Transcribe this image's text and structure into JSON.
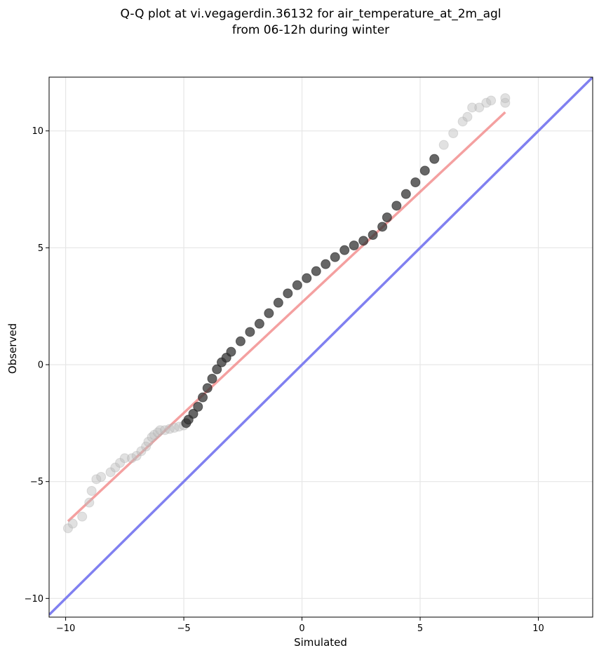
{
  "chart_data": {
    "type": "scatter",
    "title": [
      "Q-Q plot at vi.vegagerdin.36132 for air_temperature_at_2m_agl",
      "from 06-12h during winter"
    ],
    "xlabel": "Simulated",
    "ylabel": "Observed",
    "xlim": [
      -10.7,
      12.3
    ],
    "ylim": [
      -10.8,
      12.3
    ],
    "x_ticks": [
      -10,
      -5,
      0,
      5,
      10
    ],
    "y_ticks": [
      -10,
      -5,
      0,
      5,
      10
    ],
    "x_tick_labels": [
      "−10",
      "−5",
      "0",
      "5",
      "10"
    ],
    "y_tick_labels": [
      "−10",
      "−5",
      "0",
      "5",
      "10"
    ],
    "grid": true,
    "series": [
      {
        "kind": "quantile_points",
        "color": "#333333",
        "x": [
          -9.9,
          -9.7,
          -9.3,
          -9.0,
          -8.9,
          -8.7,
          -8.5,
          -8.1,
          -7.9,
          -7.7,
          -7.5,
          -7.2,
          -7.0,
          -6.8,
          -6.6,
          -6.5,
          -6.35,
          -6.25,
          -6.1,
          -6.0,
          -5.8,
          -5.6,
          -5.4,
          -5.2,
          -5.0,
          -4.9,
          -4.8,
          -4.6,
          -4.4,
          -4.2,
          -4.0,
          -3.8,
          -3.6,
          -3.4,
          -3.2,
          -3.0,
          -2.6,
          -2.2,
          -1.8,
          -1.4,
          -1.0,
          -0.6,
          -0.2,
          0.2,
          0.6,
          1.0,
          1.4,
          1.8,
          2.2,
          2.6,
          3.0,
          3.4,
          3.6,
          4.0,
          4.4,
          4.8,
          5.2,
          5.6,
          6.0,
          6.4,
          6.8,
          7.0,
          7.2,
          7.5,
          7.8,
          8.0,
          8.6,
          8.6
        ],
        "y": [
          -7.0,
          -6.8,
          -6.5,
          -5.9,
          -5.4,
          -4.9,
          -4.8,
          -4.6,
          -4.4,
          -4.2,
          -4.0,
          -4.0,
          -3.9,
          -3.7,
          -3.5,
          -3.3,
          -3.1,
          -3.0,
          -2.9,
          -2.8,
          -2.8,
          -2.75,
          -2.7,
          -2.65,
          -2.6,
          -2.5,
          -2.35,
          -2.1,
          -1.8,
          -1.4,
          -1.0,
          -0.6,
          -0.2,
          0.1,
          0.3,
          0.55,
          1.0,
          1.4,
          1.75,
          2.2,
          2.65,
          3.05,
          3.4,
          3.7,
          4.0,
          4.3,
          4.6,
          4.9,
          5.1,
          5.3,
          5.55,
          5.9,
          6.3,
          6.8,
          7.3,
          7.8,
          8.3,
          8.8,
          9.4,
          9.9,
          10.4,
          10.6,
          11.0,
          11.0,
          11.2,
          11.3,
          11.2,
          11.4
        ]
      },
      {
        "kind": "fit_line",
        "color": "#f08080",
        "x": [
          -9.9,
          8.6
        ],
        "y": [
          -6.7,
          10.8
        ]
      },
      {
        "kind": "identity_line",
        "color": "#8080f0",
        "x": [
          -10.7,
          12.3
        ],
        "y": [
          -10.7,
          12.3
        ]
      }
    ]
  }
}
